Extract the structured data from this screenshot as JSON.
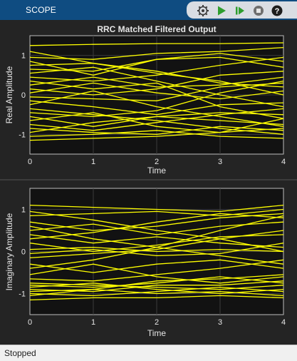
{
  "toolbar": {
    "title": "SCOPE",
    "buttons": [
      {
        "name": "settings-button",
        "icon": "gear-icon"
      },
      {
        "name": "run-button",
        "icon": "play-icon"
      },
      {
        "name": "step-forward-button",
        "icon": "step-forward-icon"
      },
      {
        "name": "stop-button",
        "icon": "stop-icon"
      },
      {
        "name": "help-button",
        "icon": "help-icon"
      }
    ]
  },
  "status": {
    "text": "Stopped"
  },
  "colors": {
    "trace": "#ffff00",
    "axes_bg": "#121212",
    "panel_bg": "#242424",
    "toolbar": "#0f4c81"
  },
  "chart_data": [
    {
      "type": "line",
      "title": "RRC Matched Filtered Output",
      "xlabel": "Time",
      "ylabel": "Real Amplitude",
      "xlim": [
        0,
        4
      ],
      "ylim": [
        -1.5,
        1.5
      ],
      "xticks": [
        0,
        1,
        2,
        3,
        4
      ],
      "yticks": [
        -1,
        0,
        1
      ],
      "grid": true,
      "x": [
        0,
        1,
        2,
        3,
        4
      ],
      "series_color": "#ffff00",
      "series": [
        {
          "values": [
            1.25,
            1.28,
            1.3,
            1.3,
            1.32
          ]
        },
        {
          "values": [
            1.1,
            0.8,
            0.6,
            0.3,
            0.2
          ]
        },
        {
          "values": [
            0.95,
            0.9,
            1.05,
            1.1,
            1.2
          ]
        },
        {
          "values": [
            0.85,
            0.5,
            0.9,
            0.95,
            0.7
          ]
        },
        {
          "values": [
            0.75,
            0.8,
            0.55,
            0.35,
            0.0
          ]
        },
        {
          "values": [
            0.65,
            0.6,
            0.9,
            1.05,
            0.85
          ]
        },
        {
          "values": [
            0.55,
            0.7,
            0.35,
            0.0,
            -0.3
          ]
        },
        {
          "values": [
            0.45,
            0.35,
            0.5,
            0.75,
            0.95
          ]
        },
        {
          "values": [
            0.35,
            0.15,
            0.3,
            -0.3,
            -0.6
          ]
        },
        {
          "values": [
            0.25,
            0.45,
            0.2,
            0.25,
            0.45
          ]
        },
        {
          "values": [
            0.15,
            0.0,
            0.15,
            0.5,
            0.6
          ]
        },
        {
          "values": [
            0.05,
            0.3,
            0.05,
            -0.1,
            0.1
          ]
        },
        {
          "values": [
            -0.05,
            -0.1,
            -0.15,
            0.2,
            0.3
          ]
        },
        {
          "values": [
            -0.15,
            -0.3,
            -0.5,
            -0.25,
            -0.2
          ]
        },
        {
          "values": [
            -0.25,
            0.1,
            -0.3,
            -0.55,
            -0.8
          ]
        },
        {
          "values": [
            -0.35,
            -0.5,
            -0.65,
            -0.85,
            -1.0
          ]
        },
        {
          "values": [
            -0.45,
            -0.55,
            -0.4,
            0.05,
            0.35
          ]
        },
        {
          "values": [
            -0.55,
            -0.8,
            -0.55,
            -0.45,
            -0.5
          ]
        },
        {
          "values": [
            -0.65,
            -0.45,
            -0.8,
            -0.95,
            -0.6
          ]
        },
        {
          "values": [
            -0.75,
            -0.9,
            -0.7,
            -0.5,
            -0.35
          ]
        },
        {
          "values": [
            -0.85,
            -0.95,
            -1.0,
            -0.8,
            -0.9
          ]
        },
        {
          "values": [
            -0.95,
            -0.7,
            -0.55,
            -0.65,
            -0.75
          ]
        },
        {
          "values": [
            -1.05,
            -1.0,
            -0.9,
            -1.05,
            -1.1
          ]
        },
        {
          "values": [
            -1.15,
            -1.1,
            -1.05,
            -0.95,
            -0.85
          ]
        }
      ]
    },
    {
      "type": "line",
      "title": "",
      "xlabel": "Time",
      "ylabel": "Imaginary Amplitude",
      "xlim": [
        0,
        4
      ],
      "ylim": [
        -1.5,
        1.5
      ],
      "xticks": [
        0,
        1,
        2,
        3,
        4
      ],
      "yticks": [
        -1,
        0,
        1
      ],
      "grid": true,
      "x": [
        0,
        1,
        2,
        3,
        4
      ],
      "series_color": "#ffff00",
      "series": [
        {
          "values": [
            1.1,
            1.05,
            1.0,
            0.95,
            1.1
          ]
        },
        {
          "values": [
            0.95,
            0.75,
            0.5,
            0.3,
            0.0
          ]
        },
        {
          "values": [
            0.85,
            0.9,
            0.95,
            0.85,
            1.0
          ]
        },
        {
          "values": [
            0.7,
            0.5,
            0.6,
            0.8,
            0.9
          ]
        },
        {
          "values": [
            0.6,
            0.3,
            0.1,
            -0.1,
            -0.3
          ]
        },
        {
          "values": [
            0.5,
            0.65,
            0.4,
            0.6,
            0.7
          ]
        },
        {
          "values": [
            0.4,
            0.2,
            0.35,
            0.2,
            0.1
          ]
        },
        {
          "values": [
            0.3,
            0.45,
            0.7,
            0.9,
            0.8
          ]
        },
        {
          "values": [
            0.2,
            0.0,
            0.15,
            0.35,
            0.4
          ]
        },
        {
          "values": [
            0.05,
            0.1,
            0.0,
            0.05,
            0.0
          ]
        },
        {
          "values": [
            -0.05,
            0.05,
            -0.1,
            -0.05,
            0.2
          ]
        },
        {
          "values": [
            -0.15,
            -0.05,
            0.05,
            0.3,
            0.5
          ]
        },
        {
          "values": [
            -0.3,
            -0.5,
            -0.3,
            -0.2,
            -0.4
          ]
        },
        {
          "values": [
            -0.4,
            -0.2,
            0.1,
            0.5,
            0.85
          ]
        },
        {
          "values": [
            -0.55,
            -0.3,
            -0.6,
            -0.75,
            -0.6
          ]
        },
        {
          "values": [
            -0.65,
            -0.7,
            -0.55,
            -0.4,
            -0.2
          ]
        },
        {
          "values": [
            -0.75,
            -0.8,
            -0.85,
            -0.9,
            -0.8
          ]
        },
        {
          "values": [
            -0.8,
            -0.85,
            -0.75,
            -0.6,
            -0.75
          ]
        },
        {
          "values": [
            -0.85,
            -0.75,
            -0.9,
            -1.0,
            -0.9
          ]
        },
        {
          "values": [
            -0.9,
            -0.95,
            -0.8,
            -0.8,
            -0.7
          ]
        },
        {
          "values": [
            -0.95,
            -0.9,
            -1.0,
            -0.95,
            -1.05
          ]
        },
        {
          "values": [
            -1.0,
            -1.05,
            -0.95,
            -0.85,
            -0.95
          ]
        },
        {
          "values": [
            -1.05,
            -0.9,
            -0.7,
            -0.65,
            -0.55
          ]
        },
        {
          "values": [
            -1.15,
            -1.1,
            -1.1,
            -1.05,
            -1.1
          ]
        }
      ]
    }
  ]
}
